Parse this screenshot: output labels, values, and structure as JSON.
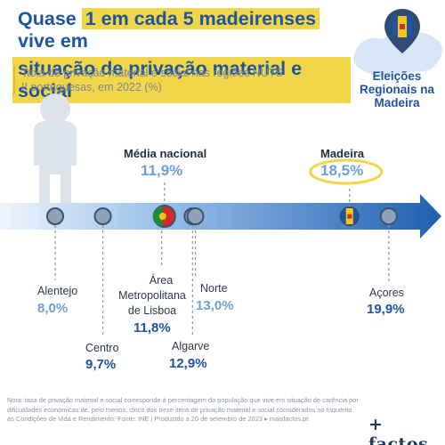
{
  "header": {
    "title_pre": "Quase ",
    "title_highlight": "1 em cada 5 madeirenses",
    "title_post": " vive em",
    "title_line2": "situação de privação material e social",
    "subtitle": "Taxa de privação material e social nas regiões NUTS II portuguesas, em 2022 (%)"
  },
  "badge": {
    "text": "Eleições Regionais na Madeira"
  },
  "chart_data": {
    "type": "scatter",
    "title": "Taxa de privação material e social nas regiões NUTS II portuguesas, em 2022 (%)",
    "unit": "%",
    "national_average": {
      "label": "Média nacional",
      "value_label": "11,9%",
      "value": 11.9
    },
    "highlight": "Madeira",
    "points": [
      {
        "region": "Alentejo",
        "value": 8.0,
        "value_label": "8,0%"
      },
      {
        "region": "Centro",
        "value": 9.7,
        "value_label": "9,7%"
      },
      {
        "region": "Área Metropolitana de Lisboa",
        "value": 11.8,
        "value_label": "11,8%"
      },
      {
        "region": "Algarve",
        "value": 12.9,
        "value_label": "12,9%"
      },
      {
        "region": "Norte",
        "value": 13.0,
        "value_label": "13,0%"
      },
      {
        "region": "Madeira",
        "value": 18.5,
        "value_label": "18,5%"
      },
      {
        "region": "Açores",
        "value": 19.9,
        "value_label": "19,9%"
      }
    ]
  },
  "labels": {
    "avg_title": "Média nacional",
    "avg_value": "11,9%",
    "madeira_title": "Madeira",
    "madeira_value": "18,5%",
    "alentejo": "Alentejo",
    "alentejo_value": "8,0%",
    "centro": "Centro",
    "centro_value": "9,7%",
    "lisboa_l1": "Área",
    "lisboa_l2": "Metropolitana",
    "lisboa_l3": "de Lisboa",
    "lisboa_value": "11,8%",
    "norte": "Norte",
    "norte_value": "13,0%",
    "algarve": "Algarve",
    "algarve_value": "12,9%",
    "acores": "Açores",
    "acores_value": "19,9%"
  },
  "footer": {
    "note": "Nota: taxa de privação material e social corresponde à percentagem da população que vive em situação de carência por dificuldades económicas de, pelo menos, cinco dos treze itens de privação material e social considerados no Inquérito às Condições de Vida e Rendimento. Fonte: INE | Produzido a 20 de setembro de 2023 ▸ maisfactos.pt",
    "brand": "+ factos"
  },
  "colors": {
    "primary_blue": "#1e55a0",
    "light_blue_value": "#6e9fd6",
    "arrow_light": "#cfe0f3",
    "arrow_dark": "#1f5fb0",
    "yellow": "#f2d64a",
    "figure_gray": "#dde3ea"
  }
}
